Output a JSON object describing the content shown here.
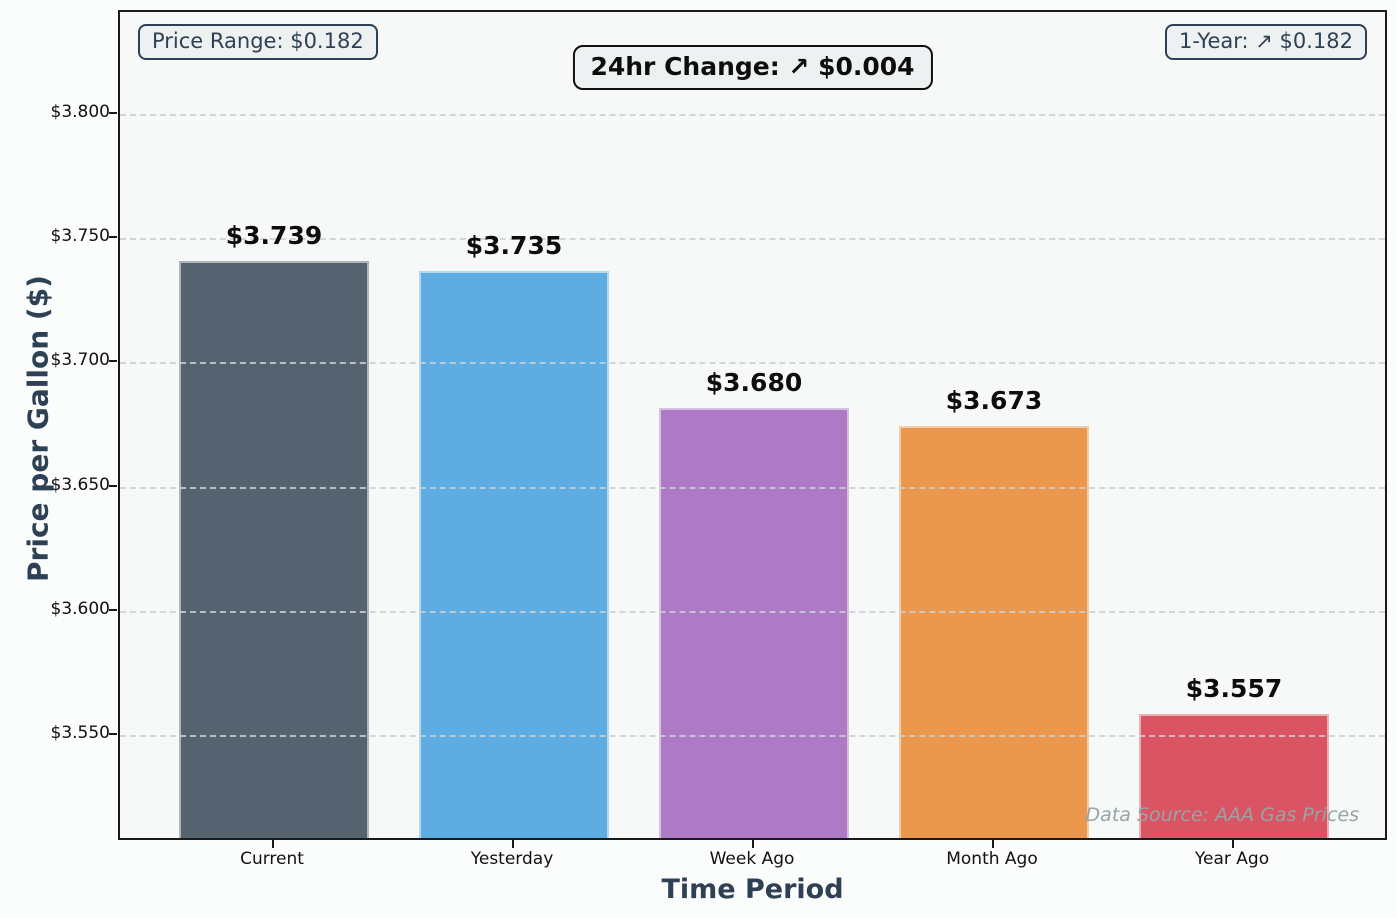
{
  "chart_data": {
    "type": "bar",
    "title": "24hr Change: ↗ $0.004",
    "xlabel": "Time Period",
    "ylabel": "Price per Gallon ($)",
    "categories": [
      "Current",
      "Yesterday",
      "Week Ago",
      "Month Ago",
      "Year Ago"
    ],
    "values": [
      3.739,
      3.735,
      3.68,
      3.673,
      3.557
    ],
    "bar_labels": [
      "$3.739",
      "$3.735",
      "$3.680",
      "$3.673",
      "$3.557"
    ],
    "bar_colors": [
      "#55626F",
      "#5DADE2",
      "#AF7AC5",
      "#EB984E",
      "#DB5464"
    ],
    "ylim": [
      3.507,
      3.841
    ],
    "yticks": [
      {
        "value": 3.55,
        "label": "$3.550"
      },
      {
        "value": 3.6,
        "label": "$3.600"
      },
      {
        "value": 3.65,
        "label": "$3.650"
      },
      {
        "value": 3.7,
        "label": "$3.700"
      },
      {
        "value": 3.75,
        "label": "$3.750"
      },
      {
        "value": 3.8,
        "label": "$3.800"
      }
    ],
    "grid": "horizontal dashed",
    "legend": "none",
    "annotations": {
      "price_range": "Price Range: $0.182",
      "one_year": "1-Year: ↗ $0.182",
      "data_source": "Data Source: AAA Gas Prices"
    },
    "colors": {
      "accent_text": "#2e4053",
      "bar_value_text": "#0d0d0d",
      "plot_background": "#f7f8f8",
      "figure_background": "#fbfcfc",
      "gridline": "#cbd0d4",
      "data_source_text": "#95a5a6"
    }
  }
}
